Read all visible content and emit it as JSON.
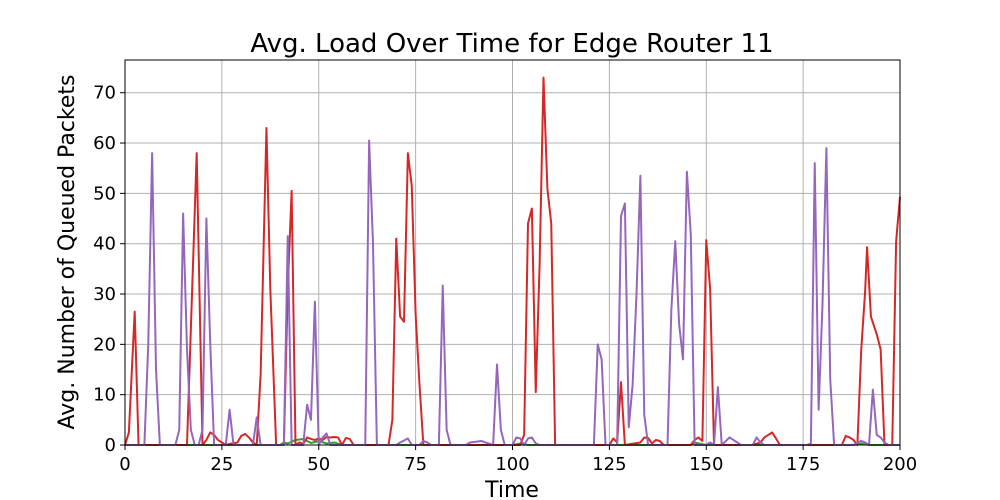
{
  "chart_data": {
    "type": "line",
    "title": "Avg. Load Over Time for Edge Router 11",
    "xlabel": "Time",
    "ylabel": "Avg. Number of Queued Packets",
    "xlim": [
      0,
      200
    ],
    "ylim": [
      0,
      76.5
    ],
    "xticks": [
      0,
      25,
      50,
      75,
      100,
      125,
      150,
      175,
      200
    ],
    "yticks": [
      0,
      10,
      20,
      30,
      40,
      50,
      60,
      70
    ],
    "grid": true,
    "series": [
      {
        "color": "#2ca02c",
        "points": [
          [
            0,
            0
          ],
          [
            40,
            0
          ],
          [
            41,
            0.5
          ],
          [
            42,
            0.3
          ],
          [
            44,
            1
          ],
          [
            46,
            1.2
          ],
          [
            48,
            0.4
          ],
          [
            50,
            0.8
          ],
          [
            52,
            0.3
          ],
          [
            54,
            0.5
          ],
          [
            56,
            0
          ],
          [
            100,
            0
          ],
          [
            102,
            0.3
          ],
          [
            104,
            0
          ],
          [
            146,
            0
          ],
          [
            147,
            0.5
          ],
          [
            148,
            0.3
          ],
          [
            150,
            0
          ],
          [
            188,
            0
          ],
          [
            190,
            0.3
          ],
          [
            192,
            0
          ],
          [
            200,
            0
          ]
        ]
      },
      {
        "color": "#d62728",
        "points": [
          [
            0,
            0
          ],
          [
            1,
            2.5
          ],
          [
            2.5,
            26.5
          ],
          [
            3.5,
            0
          ],
          [
            16,
            0
          ],
          [
            18.5,
            58
          ],
          [
            20,
            0
          ],
          [
            21,
            1
          ],
          [
            22,
            2.5
          ],
          [
            23,
            2
          ],
          [
            24,
            1
          ],
          [
            25,
            0.5
          ],
          [
            26,
            0
          ],
          [
            27,
            0.2
          ],
          [
            29,
            0.5
          ],
          [
            30,
            1.8
          ],
          [
            31,
            2.2
          ],
          [
            32,
            1.5
          ],
          [
            33,
            0.5
          ],
          [
            34,
            0
          ],
          [
            35,
            14
          ],
          [
            36.5,
            63
          ],
          [
            37.5,
            31
          ],
          [
            39,
            0
          ],
          [
            41,
            0
          ],
          [
            42,
            31
          ],
          [
            43,
            50.5
          ],
          [
            44,
            0
          ],
          [
            45,
            0.5
          ],
          [
            46,
            0.2
          ],
          [
            47,
            1.5
          ],
          [
            48,
            1.2
          ],
          [
            49,
            1
          ],
          [
            50,
            1.3
          ],
          [
            51,
            1
          ],
          [
            52,
            1.6
          ],
          [
            53,
            1.5
          ],
          [
            54,
            1.6
          ],
          [
            55,
            1.5
          ],
          [
            56,
            0
          ],
          [
            57,
            1.4
          ],
          [
            58,
            1.2
          ],
          [
            59,
            0
          ],
          [
            68,
            0
          ],
          [
            69,
            5
          ],
          [
            70,
            41
          ],
          [
            71,
            25.5
          ],
          [
            72,
            24.5
          ],
          [
            73,
            58
          ],
          [
            74,
            51.5
          ],
          [
            75,
            26
          ],
          [
            76,
            12
          ],
          [
            77,
            0
          ],
          [
            102,
            0
          ],
          [
            103,
            2
          ],
          [
            104,
            44
          ],
          [
            105,
            47
          ],
          [
            106,
            10.5
          ],
          [
            107,
            36
          ],
          [
            108,
            73
          ],
          [
            109,
            51
          ],
          [
            110,
            44
          ],
          [
            111,
            0
          ],
          [
            125,
            0
          ],
          [
            126,
            1.3
          ],
          [
            127,
            0.5
          ],
          [
            128,
            12.5
          ],
          [
            129,
            0
          ],
          [
            133,
            0.5
          ],
          [
            134,
            1.5
          ],
          [
            135,
            1.4
          ],
          [
            136,
            0.3
          ],
          [
            137,
            1
          ],
          [
            138,
            0.8
          ],
          [
            139,
            0
          ],
          [
            146,
            0
          ],
          [
            147,
            1
          ],
          [
            148,
            1.5
          ],
          [
            149,
            0.8
          ],
          [
            150,
            40.7
          ],
          [
            151,
            31
          ],
          [
            152,
            0
          ],
          [
            162,
            0
          ],
          [
            164,
            0.5
          ],
          [
            165,
            1.5
          ],
          [
            167,
            2.5
          ],
          [
            168,
            1.3
          ],
          [
            169,
            0
          ],
          [
            185,
            0
          ],
          [
            186,
            1.8
          ],
          [
            187,
            1.5
          ],
          [
            188,
            1
          ],
          [
            189,
            0
          ],
          [
            190,
            19
          ],
          [
            191,
            30.5
          ],
          [
            191.5,
            39.3
          ],
          [
            192.5,
            25.5
          ],
          [
            194,
            22
          ],
          [
            195,
            19
          ],
          [
            196,
            0
          ],
          [
            198,
            0
          ],
          [
            199,
            40.5
          ],
          [
            200,
            49.3
          ]
        ]
      },
      {
        "color": "#9467bd",
        "points": [
          [
            0,
            0
          ],
          [
            5,
            0
          ],
          [
            6,
            20
          ],
          [
            7,
            58
          ],
          [
            8,
            15
          ],
          [
            9,
            0
          ],
          [
            13,
            0
          ],
          [
            14,
            3
          ],
          [
            15,
            46
          ],
          [
            16,
            19
          ],
          [
            17,
            3
          ],
          [
            18,
            0
          ],
          [
            19,
            0
          ],
          [
            20,
            3
          ],
          [
            21,
            45
          ],
          [
            22,
            20
          ],
          [
            23,
            0
          ],
          [
            26,
            0
          ],
          [
            27,
            7
          ],
          [
            28,
            0
          ],
          [
            33,
            0
          ],
          [
            34,
            5.5
          ],
          [
            35,
            0
          ],
          [
            41,
            0
          ],
          [
            42,
            41.5
          ],
          [
            43,
            0
          ],
          [
            46,
            0
          ],
          [
            47,
            8
          ],
          [
            48,
            5
          ],
          [
            49,
            28.5
          ],
          [
            50,
            0
          ],
          [
            51,
            1.5
          ],
          [
            52,
            2.3
          ],
          [
            53,
            0
          ],
          [
            62,
            0
          ],
          [
            63,
            60.5
          ],
          [
            64,
            40
          ],
          [
            65,
            0
          ],
          [
            70,
            0
          ],
          [
            71,
            0.5
          ],
          [
            73,
            1.3
          ],
          [
            74,
            0
          ],
          [
            76,
            0
          ],
          [
            77,
            0.8
          ],
          [
            78,
            0.5
          ],
          [
            79,
            0
          ],
          [
            81,
            0
          ],
          [
            82,
            31.7
          ],
          [
            83,
            3
          ],
          [
            84,
            0
          ],
          [
            88,
            0
          ],
          [
            89,
            0.5
          ],
          [
            92,
            0.8
          ],
          [
            93,
            0.5
          ],
          [
            95,
            0
          ],
          [
            96,
            16
          ],
          [
            97,
            3
          ],
          [
            98,
            0
          ],
          [
            100,
            0
          ],
          [
            101,
            1.5
          ],
          [
            102,
            1.3
          ],
          [
            103,
            0
          ],
          [
            104,
            1.3
          ],
          [
            105,
            1.5
          ],
          [
            106,
            0.3
          ],
          [
            107,
            0
          ],
          [
            121,
            0
          ],
          [
            122,
            20
          ],
          [
            123,
            17
          ],
          [
            124,
            0
          ],
          [
            127,
            0
          ],
          [
            128,
            45.5
          ],
          [
            129,
            48
          ],
          [
            130,
            3.5
          ],
          [
            131,
            12
          ],
          [
            132,
            30
          ],
          [
            133,
            53.5
          ],
          [
            134,
            6
          ],
          [
            135,
            0
          ],
          [
            140,
            0
          ],
          [
            141,
            27
          ],
          [
            142,
            40.5
          ],
          [
            143,
            24
          ],
          [
            144,
            17
          ],
          [
            145,
            54.3
          ],
          [
            146,
            42
          ],
          [
            147,
            0
          ],
          [
            150,
            0
          ],
          [
            151,
            0.5
          ],
          [
            152,
            0
          ],
          [
            153,
            11.5
          ],
          [
            154,
            0
          ],
          [
            156,
            1.5
          ],
          [
            157,
            1
          ],
          [
            158,
            0.5
          ],
          [
            159,
            0
          ],
          [
            162,
            0
          ],
          [
            163,
            1.5
          ],
          [
            164,
            0.5
          ],
          [
            165,
            0
          ],
          [
            176,
            0
          ],
          [
            177,
            0.3
          ],
          [
            178,
            56
          ],
          [
            179,
            7
          ],
          [
            180,
            28
          ],
          [
            181,
            59
          ],
          [
            182,
            13
          ],
          [
            183,
            0
          ],
          [
            188,
            0
          ],
          [
            189,
            0.5
          ],
          [
            190,
            0.8
          ],
          [
            191,
            0.5
          ],
          [
            192,
            0
          ],
          [
            193,
            11
          ],
          [
            194,
            2
          ],
          [
            195,
            1.5
          ],
          [
            196,
            0.5
          ],
          [
            197,
            0
          ],
          [
            200,
            0
          ]
        ]
      }
    ]
  }
}
